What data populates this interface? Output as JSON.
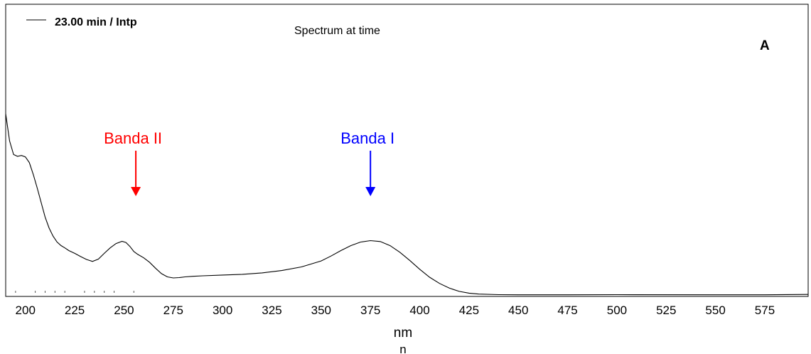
{
  "chart_data": {
    "type": "line",
    "title": "Spectrum at time",
    "legend": "23.00 min / Intp",
    "panel_label": "A",
    "xlabel": "nm",
    "xlabel_fragment": "n",
    "ylabel": "",
    "xlim": [
      190,
      597
    ],
    "ylim": [
      0,
      1
    ],
    "x_ticks": [
      200,
      225,
      250,
      275,
      300,
      325,
      350,
      375,
      400,
      425,
      450,
      475,
      500,
      525,
      550,
      575
    ],
    "minor_marks": [
      195,
      205,
      210,
      215,
      220,
      230,
      235,
      240,
      245,
      255
    ],
    "grid": false,
    "series": [
      {
        "color": "#000000",
        "x": [
          190,
          192,
          194,
          196,
          198,
          200,
          202,
          204,
          206,
          208,
          210,
          212,
          214,
          216,
          218,
          220,
          222,
          225,
          228,
          231,
          234,
          237,
          240,
          243,
          246,
          249,
          251,
          253,
          255,
          257,
          260,
          263,
          266,
          269,
          272,
          275,
          278,
          281,
          285,
          290,
          300,
          310,
          320,
          330,
          340,
          350,
          355,
          360,
          365,
          370,
          375,
          380,
          385,
          390,
          395,
          400,
          405,
          410,
          415,
          420,
          425,
          430,
          440,
          450,
          475,
          500,
          550,
          575,
          597
        ],
        "values": [
          1.0,
          0.85,
          0.775,
          0.765,
          0.77,
          0.762,
          0.73,
          0.665,
          0.59,
          0.51,
          0.43,
          0.37,
          0.325,
          0.293,
          0.273,
          0.26,
          0.245,
          0.23,
          0.212,
          0.196,
          0.185,
          0.198,
          0.23,
          0.26,
          0.284,
          0.296,
          0.29,
          0.268,
          0.24,
          0.224,
          0.205,
          0.18,
          0.148,
          0.118,
          0.1,
          0.094,
          0.096,
          0.1,
          0.103,
          0.106,
          0.11,
          0.114,
          0.122,
          0.135,
          0.155,
          0.188,
          0.215,
          0.245,
          0.272,
          0.292,
          0.3,
          0.295,
          0.272,
          0.235,
          0.19,
          0.142,
          0.098,
          0.064,
          0.038,
          0.02,
          0.01,
          0.005,
          0.002,
          0.001,
          0.001,
          0.002,
          0.001,
          0.001,
          0.003
        ]
      }
    ],
    "annotations": [
      {
        "text": "Banda II",
        "x": 256,
        "color": "#ff0000"
      },
      {
        "text": "Banda I",
        "x": 375,
        "color": "#0000ff"
      }
    ]
  }
}
